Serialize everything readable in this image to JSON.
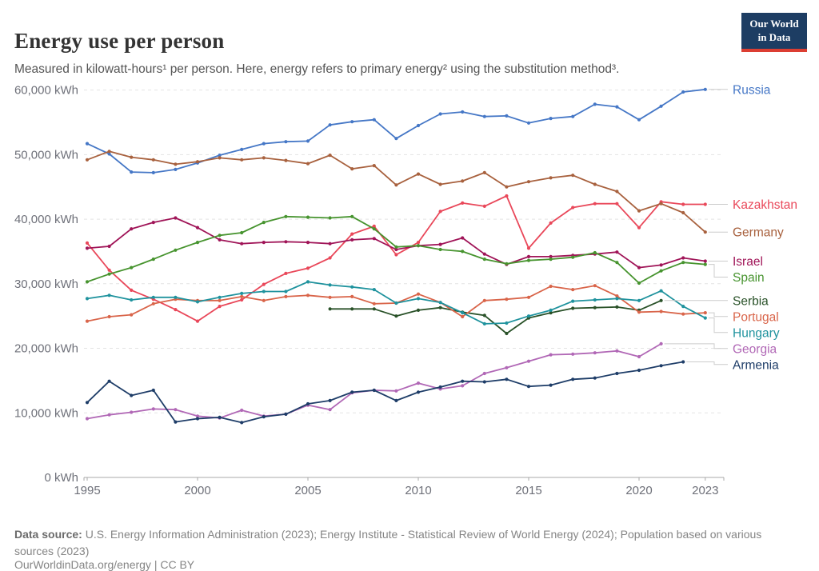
{
  "header": {
    "title": "Energy use per person",
    "subtitle": "Measured in kilowatt-hours¹ per person. Here, energy refers to primary energy² using the substitution method³.",
    "logo": {
      "line1": "Our World",
      "line2": "in Data"
    }
  },
  "footer": {
    "source_label": "Data source:",
    "source_text": " U.S. Energy Information Administration (2023); Energy Institute - Statistical Review of World Energy (2024); Population based on various sources (2023)",
    "license": "OurWorldinData.org/energy | CC BY"
  },
  "chart_data": {
    "type": "line",
    "title": "Energy use per person",
    "xlabel": "",
    "ylabel": "kWh",
    "grid": true,
    "legend_position": "right",
    "years": [
      1995,
      1996,
      1997,
      1998,
      1999,
      2000,
      2001,
      2002,
      2003,
      2004,
      2005,
      2006,
      2007,
      2008,
      2009,
      2010,
      2011,
      2012,
      2013,
      2014,
      2015,
      2016,
      2017,
      2018,
      2019,
      2020,
      2021,
      2022,
      2023
    ],
    "xticks": [
      1995,
      2000,
      2005,
      2010,
      2015,
      2020,
      2023
    ],
    "ylim": [
      0,
      60000
    ],
    "yticks": [
      {
        "value": 0,
        "label": "0 kWh"
      },
      {
        "value": 10000,
        "label": "10,000 kWh"
      },
      {
        "value": 20000,
        "label": "20,000 kWh"
      },
      {
        "value": 30000,
        "label": "30,000 kWh"
      },
      {
        "value": 40000,
        "label": "40,000 kWh"
      },
      {
        "value": 50000,
        "label": "50,000 kWh"
      },
      {
        "value": 60000,
        "label": "60,000 kWh"
      }
    ],
    "series": [
      {
        "name": "Russia",
        "color": "#4577C6",
        "start_year": 1995,
        "values": [
          51700,
          50100,
          47300,
          47200,
          47700,
          48700,
          49900,
          50800,
          51700,
          52000,
          52100,
          54600,
          55100,
          55400,
          52500,
          54500,
          56300,
          56600,
          55900,
          56000,
          54900,
          55600,
          55900,
          57800,
          57400,
          55400,
          57500,
          59700,
          60100
        ]
      },
      {
        "name": "Kazakhstan",
        "color": "#E9485A",
        "start_year": 1995,
        "values": [
          36300,
          32100,
          29000,
          27600,
          26000,
          24200,
          26500,
          27500,
          29900,
          31600,
          32400,
          34000,
          37700,
          38900,
          34500,
          36400,
          41200,
          42500,
          42000,
          43600,
          35500,
          39400,
          41800,
          42400,
          42400,
          38700,
          42700,
          42300,
          42300
        ]
      },
      {
        "name": "Germany",
        "color": "#A8613E",
        "start_year": 1995,
        "values": [
          49200,
          50500,
          49600,
          49200,
          48500,
          48900,
          49500,
          49200,
          49500,
          49100,
          48600,
          49900,
          47800,
          48300,
          45300,
          47000,
          45400,
          45900,
          47200,
          45000,
          45800,
          46400,
          46800,
          45400,
          44300,
          41300,
          42400,
          41000,
          38000
        ]
      },
      {
        "name": "Israel",
        "color": "#A01558",
        "start_year": 1995,
        "values": [
          35500,
          35800,
          38500,
          39500,
          40200,
          38700,
          36800,
          36200,
          36400,
          36500,
          36400,
          36200,
          36800,
          37000,
          35300,
          35900,
          36100,
          37100,
          34600,
          33000,
          34200,
          34200,
          34400,
          34600,
          34900,
          32500,
          32900,
          34000,
          33500
        ]
      },
      {
        "name": "Spain",
        "color": "#47942F",
        "start_year": 1995,
        "values": [
          30300,
          31500,
          32500,
          33800,
          35200,
          36400,
          37500,
          37900,
          39500,
          40400,
          40300,
          40200,
          40400,
          38500,
          35700,
          35900,
          35300,
          35000,
          33800,
          33100,
          33600,
          33800,
          34100,
          34800,
          33300,
          30100,
          32000,
          33300,
          33000
        ]
      },
      {
        "name": "Serbia",
        "color": "#2A5229",
        "start_year": 2006,
        "values": [
          26100,
          26100,
          26100,
          25000,
          25900,
          26300,
          25600,
          25100,
          22300,
          24700,
          25500,
          26200,
          26300,
          26400,
          25900,
          27400
        ]
      },
      {
        "name": "Portugal",
        "color": "#D9654A",
        "start_year": 1995,
        "values": [
          24200,
          24900,
          25200,
          26900,
          27600,
          27400,
          27400,
          28000,
          27400,
          28000,
          28200,
          27900,
          28000,
          26900,
          27000,
          28400,
          27100,
          24900,
          27400,
          27600,
          27900,
          29600,
          29100,
          29700,
          28100,
          25600,
          25700,
          25300,
          25500
        ]
      },
      {
        "name": "Hungary",
        "color": "#20939E",
        "start_year": 1995,
        "values": [
          27700,
          28200,
          27500,
          27900,
          27900,
          27200,
          27900,
          28500,
          28800,
          28800,
          30300,
          29800,
          29500,
          29100,
          27000,
          27700,
          27100,
          25500,
          23800,
          23900,
          25000,
          25900,
          27300,
          27500,
          27700,
          27400,
          28900,
          26500,
          24700
        ]
      },
      {
        "name": "Georgia",
        "color": "#B168B6",
        "start_year": 1995,
        "values": [
          9100,
          9700,
          10100,
          10600,
          10500,
          9500,
          9200,
          10400,
          9500,
          9800,
          11200,
          10500,
          13100,
          13500,
          13400,
          14600,
          13700,
          14200,
          16100,
          17000,
          18000,
          19000,
          19100,
          19300,
          19600,
          18700,
          20700
        ]
      },
      {
        "name": "Armenia",
        "color": "#1E3D68",
        "start_year": 1995,
        "values": [
          11600,
          14900,
          12700,
          13500,
          8600,
          9100,
          9300,
          8500,
          9400,
          9800,
          11400,
          11900,
          13200,
          13500,
          11900,
          13200,
          14000,
          14900,
          14800,
          15200,
          14100,
          14300,
          15200,
          15400,
          16100,
          16600,
          17300,
          17900
        ]
      }
    ]
  }
}
